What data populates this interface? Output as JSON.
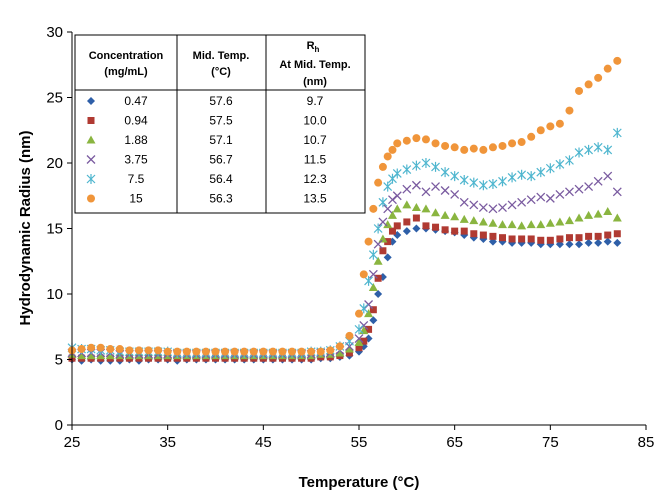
{
  "chart_data": {
    "type": "scatter",
    "title": "",
    "xlabel": "Temperature (°C)",
    "ylabel": "Hydrodynamic Radius (nm)",
    "xlim": [
      25,
      85
    ],
    "ylim": [
      0,
      30
    ],
    "xticks": [
      "25",
      "35",
      "45",
      "55",
      "65",
      "75",
      "85"
    ],
    "yticks": [
      "0",
      "5",
      "10",
      "15",
      "20",
      "25",
      "30"
    ],
    "grid": false,
    "legend_position": "top-left (inset table)",
    "series": [
      {
        "name": "0.47",
        "color": "#2e5fa8",
        "marker": "diamond",
        "x": [
          25,
          26,
          27,
          28,
          29,
          30,
          31,
          32,
          33,
          34,
          35,
          36,
          37,
          38,
          39,
          40,
          41,
          42,
          43,
          44,
          45,
          46,
          47,
          48,
          49,
          50,
          51,
          52,
          53,
          54,
          55,
          55.5,
          56,
          56.5,
          57,
          57.5,
          58,
          58.5,
          59,
          60,
          61,
          62,
          63,
          64,
          65,
          66,
          67,
          68,
          69,
          70,
          71,
          72,
          73,
          74,
          75,
          76,
          77,
          78,
          79,
          80,
          81,
          82
        ],
        "y": [
          5.0,
          4.9,
          5.0,
          4.9,
          4.9,
          4.9,
          5.0,
          4.9,
          5.0,
          5.0,
          5.0,
          4.9,
          5.0,
          5.0,
          5.0,
          5.0,
          5.0,
          5.0,
          5.0,
          5.0,
          5.0,
          5.0,
          5.0,
          5.0,
          5.0,
          5.0,
          5.1,
          5.1,
          5.2,
          5.3,
          5.6,
          6.0,
          6.6,
          8.0,
          10.0,
          11.3,
          12.8,
          14.0,
          14.5,
          14.8,
          15.0,
          15.0,
          14.9,
          14.8,
          14.7,
          14.5,
          14.3,
          14.2,
          14.0,
          14.0,
          13.9,
          13.9,
          13.9,
          13.8,
          13.8,
          13.8,
          13.8,
          13.8,
          13.9,
          13.9,
          14.0,
          13.9
        ]
      },
      {
        "name": "0.94",
        "color": "#b03a32",
        "marker": "square",
        "x": [
          25,
          26,
          27,
          28,
          29,
          30,
          31,
          32,
          33,
          34,
          35,
          36,
          37,
          38,
          39,
          40,
          41,
          42,
          43,
          44,
          45,
          46,
          47,
          48,
          49,
          50,
          51,
          52,
          53,
          54,
          55,
          55.5,
          56,
          56.5,
          57,
          57.5,
          58,
          58.5,
          59,
          60,
          61,
          62,
          63,
          64,
          65,
          66,
          67,
          68,
          69,
          70,
          71,
          72,
          73,
          74,
          75,
          76,
          77,
          78,
          79,
          80,
          81,
          82
        ],
        "y": [
          5.1,
          5.1,
          5.1,
          5.1,
          5.1,
          5.1,
          5.1,
          5.1,
          5.1,
          5.1,
          5.1,
          5.1,
          5.1,
          5.1,
          5.1,
          5.1,
          5.1,
          5.1,
          5.1,
          5.1,
          5.1,
          5.1,
          5.1,
          5.1,
          5.1,
          5.1,
          5.2,
          5.2,
          5.3,
          5.5,
          5.9,
          6.4,
          7.3,
          8.8,
          11.2,
          13.3,
          14.0,
          14.8,
          15.2,
          15.5,
          15.8,
          15.2,
          15.1,
          14.9,
          14.8,
          14.8,
          14.6,
          14.5,
          14.4,
          14.3,
          14.2,
          14.2,
          14.2,
          14.1,
          14.1,
          14.2,
          14.3,
          14.3,
          14.4,
          14.4,
          14.5,
          14.6
        ]
      },
      {
        "name": "1.88",
        "color": "#8ab540",
        "marker": "triangle",
        "x": [
          25,
          26,
          27,
          28,
          29,
          30,
          31,
          32,
          33,
          34,
          35,
          36,
          37,
          38,
          39,
          40,
          41,
          42,
          43,
          44,
          45,
          46,
          47,
          48,
          49,
          50,
          51,
          52,
          53,
          54,
          55,
          55.5,
          56,
          56.5,
          57,
          57.5,
          58,
          58.5,
          59,
          60,
          61,
          62,
          63,
          64,
          65,
          66,
          67,
          68,
          69,
          70,
          71,
          72,
          73,
          74,
          75,
          76,
          77,
          78,
          79,
          80,
          81,
          82
        ],
        "y": [
          5.4,
          5.3,
          5.3,
          5.3,
          5.3,
          5.3,
          5.3,
          5.3,
          5.3,
          5.3,
          5.3,
          5.3,
          5.3,
          5.3,
          5.3,
          5.3,
          5.3,
          5.3,
          5.3,
          5.3,
          5.3,
          5.3,
          5.3,
          5.3,
          5.3,
          5.3,
          5.4,
          5.4,
          5.5,
          5.8,
          6.3,
          7.2,
          8.5,
          10.5,
          12.5,
          14.2,
          15.3,
          16.0,
          16.5,
          16.8,
          16.6,
          16.5,
          16.2,
          16.0,
          15.9,
          15.7,
          15.6,
          15.5,
          15.4,
          15.3,
          15.3,
          15.2,
          15.3,
          15.3,
          15.4,
          15.5,
          15.6,
          15.8,
          16.0,
          16.1,
          16.3,
          15.8
        ]
      },
      {
        "name": "3.75",
        "color": "#7a5ba0",
        "marker": "x",
        "x": [
          25,
          26,
          27,
          28,
          29,
          30,
          31,
          32,
          33,
          34,
          35,
          36,
          37,
          38,
          39,
          40,
          41,
          42,
          43,
          44,
          45,
          46,
          47,
          48,
          49,
          50,
          51,
          52,
          53,
          54,
          55,
          55.5,
          56,
          56.5,
          57,
          57.5,
          58,
          58.5,
          59,
          60,
          61,
          62,
          63,
          64,
          65,
          66,
          67,
          68,
          69,
          70,
          71,
          72,
          73,
          74,
          75,
          76,
          77,
          78,
          79,
          80,
          81,
          82
        ],
        "y": [
          5.5,
          5.5,
          5.5,
          5.5,
          5.5,
          5.4,
          5.4,
          5.4,
          5.4,
          5.4,
          5.4,
          5.4,
          5.4,
          5.4,
          5.4,
          5.4,
          5.4,
          5.4,
          5.4,
          5.4,
          5.4,
          5.4,
          5.4,
          5.4,
          5.4,
          5.4,
          5.5,
          5.5,
          5.7,
          6.0,
          6.6,
          7.6,
          9.2,
          11.5,
          13.8,
          15.5,
          16.5,
          17.2,
          17.5,
          18.0,
          18.3,
          17.8,
          18.2,
          17.9,
          17.6,
          17.0,
          16.8,
          16.6,
          16.5,
          16.6,
          16.8,
          17.0,
          17.2,
          17.4,
          17.3,
          17.6,
          17.8,
          18.0,
          18.2,
          18.6,
          19.0,
          17.8
        ]
      },
      {
        "name": "7.5",
        "color": "#4fb6cf",
        "marker": "star",
        "x": [
          25,
          26,
          27,
          28,
          29,
          30,
          31,
          32,
          33,
          34,
          35,
          36,
          37,
          38,
          39,
          40,
          41,
          42,
          43,
          44,
          45,
          46,
          47,
          48,
          49,
          50,
          51,
          52,
          53,
          54,
          55,
          55.5,
          56,
          56.5,
          57,
          57.5,
          58,
          58.5,
          59,
          60,
          61,
          62,
          63,
          64,
          65,
          66,
          67,
          68,
          69,
          70,
          71,
          72,
          73,
          74,
          75,
          76,
          77,
          78,
          79,
          80,
          81,
          82
        ],
        "y": [
          5.9,
          5.8,
          5.8,
          5.7,
          5.7,
          5.6,
          5.6,
          5.6,
          5.6,
          5.6,
          5.6,
          5.5,
          5.5,
          5.5,
          5.5,
          5.5,
          5.5,
          5.5,
          5.5,
          5.5,
          5.5,
          5.5,
          5.5,
          5.5,
          5.5,
          5.6,
          5.6,
          5.7,
          6.0,
          6.4,
          7.3,
          8.9,
          11.0,
          13.0,
          15.0,
          17.0,
          18.2,
          18.8,
          19.2,
          19.5,
          19.8,
          20.0,
          19.7,
          19.3,
          19.0,
          18.7,
          18.5,
          18.3,
          18.4,
          18.6,
          18.9,
          19.1,
          19.0,
          19.3,
          19.6,
          19.9,
          20.2,
          20.8,
          21.0,
          21.2,
          21.0,
          22.3
        ]
      },
      {
        "name": "15",
        "color": "#f0953a",
        "marker": "circle",
        "x": [
          25,
          26,
          27,
          28,
          29,
          30,
          31,
          32,
          33,
          34,
          35,
          36,
          37,
          38,
          39,
          40,
          41,
          42,
          43,
          44,
          45,
          46,
          47,
          48,
          49,
          50,
          51,
          52,
          53,
          54,
          55,
          55.5,
          56,
          56.5,
          57,
          57.5,
          58,
          58.5,
          59,
          60,
          61,
          62,
          63,
          64,
          65,
          66,
          67,
          68,
          69,
          70,
          71,
          72,
          73,
          74,
          75,
          76,
          77,
          78,
          79,
          80,
          81,
          82
        ],
        "y": [
          5.7,
          5.8,
          5.9,
          5.9,
          5.8,
          5.8,
          5.7,
          5.7,
          5.7,
          5.7,
          5.6,
          5.6,
          5.6,
          5.6,
          5.6,
          5.6,
          5.6,
          5.6,
          5.6,
          5.6,
          5.6,
          5.6,
          5.6,
          5.6,
          5.6,
          5.6,
          5.6,
          5.7,
          6.0,
          6.8,
          8.5,
          11.5,
          14.0,
          16.5,
          18.5,
          19.7,
          20.5,
          21.0,
          21.5,
          21.7,
          21.9,
          21.8,
          21.5,
          21.3,
          21.2,
          21.0,
          21.1,
          21.0,
          21.2,
          21.3,
          21.5,
          21.6,
          22.0,
          22.5,
          22.8,
          23.0,
          24.0,
          25.5,
          26.0,
          26.5,
          27.2,
          27.8
        ]
      }
    ],
    "table": {
      "headers": {
        "col1_line1": "Concentration",
        "col1_line2": "(mg/mL)",
        "col2_line1": "Mid. Temp.",
        "col2_line2": "(°C)",
        "col3_line1": "R",
        "col3_line1_sub": "h",
        "col3_line2": "At Mid. Temp.",
        "col3_line3": "(nm)"
      },
      "rows": [
        {
          "conc": "0.47",
          "mid_temp": "57.6",
          "rh": "9.7"
        },
        {
          "conc": "0.94",
          "mid_temp": "57.5",
          "rh": "10.0"
        },
        {
          "conc": "1.88",
          "mid_temp": "57.1",
          "rh": "10.7"
        },
        {
          "conc": "3.75",
          "mid_temp": "56.7",
          "rh": "11.5"
        },
        {
          "conc": "7.5",
          "mid_temp": "56.4",
          "rh": "12.3"
        },
        {
          "conc": "15",
          "mid_temp": "56.3",
          "rh": "13.5"
        }
      ]
    }
  }
}
